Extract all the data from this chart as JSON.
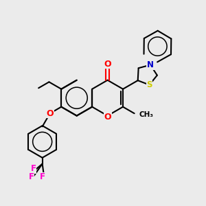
{
  "bg_color": "#ebebeb",
  "bond_color": "#000000",
  "O_color": "#ff0000",
  "N_color": "#0000cc",
  "S_color": "#cccc00",
  "F_color": "#ff00cc",
  "lw": 1.5,
  "figsize": [
    3.0,
    3.0
  ],
  "dpi": 100,
  "xlim": [
    -4.5,
    5.5
  ],
  "ylim": [
    -4.5,
    4.0
  ]
}
